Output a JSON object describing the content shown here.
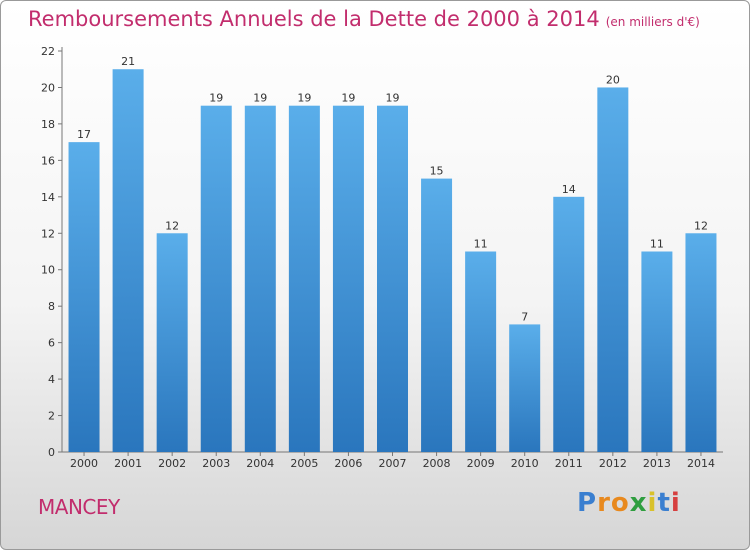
{
  "header": {
    "title": "Remboursements Annuels de la Dette de 2000 à 2014",
    "unit": "(en milliers d'€)"
  },
  "commune": "MANCEY",
  "logo": {
    "text": "Proxiti",
    "colors": [
      "#3a7fd0",
      "#e8891e",
      "#e8891e",
      "#2f9e3f",
      "#d9c12a",
      "#3a7fd0",
      "#d63f3f"
    ]
  },
  "chart_data": {
    "type": "bar",
    "title": "Remboursements Annuels de la Dette de 2000 à 2014",
    "subtitle": "(en milliers d'€)",
    "xlabel": "",
    "ylabel": "",
    "categories": [
      "2000",
      "2001",
      "2002",
      "2003",
      "2004",
      "2005",
      "2006",
      "2007",
      "2008",
      "2009",
      "2010",
      "2011",
      "2012",
      "2013",
      "2014"
    ],
    "values": [
      17,
      21,
      12,
      19,
      19,
      19,
      19,
      19,
      15,
      11,
      7,
      14,
      20,
      11,
      12
    ],
    "ylim": [
      0,
      22
    ],
    "yticks": [
      0,
      2,
      4,
      6,
      8,
      10,
      12,
      14,
      16,
      18,
      20,
      22
    ],
    "grid": false,
    "legend": "none",
    "bar_color_top": "#5aaeea",
    "bar_color_bottom": "#2a76bd"
  }
}
